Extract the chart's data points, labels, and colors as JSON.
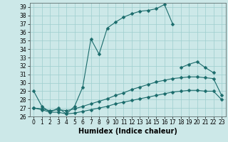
{
  "xlabel": "Humidex (Indice chaleur)",
  "bg_color": "#cce8e8",
  "grid_color": "#9ecece",
  "line_color": "#1a6b6b",
  "xlim": [
    -0.5,
    23.5
  ],
  "ylim": [
    26,
    39.5
  ],
  "xticks": [
    0,
    1,
    2,
    3,
    4,
    5,
    6,
    7,
    8,
    9,
    10,
    11,
    12,
    13,
    14,
    15,
    16,
    17,
    18,
    19,
    20,
    21,
    22,
    23
  ],
  "yticks": [
    26,
    27,
    28,
    29,
    30,
    31,
    32,
    33,
    34,
    35,
    36,
    37,
    38,
    39
  ],
  "series": [
    {
      "x": [
        0,
        1,
        2,
        3,
        4,
        5,
        6,
        7,
        8,
        9,
        10,
        11,
        12,
        13,
        14,
        15,
        16,
        17
      ],
      "y": [
        29.0,
        27.2,
        26.5,
        27.0,
        26.3,
        27.2,
        29.5,
        35.2,
        33.4,
        36.5,
        37.2,
        37.8,
        38.2,
        38.5,
        38.6,
        38.8,
        39.3,
        37.0
      ]
    },
    {
      "x": [
        18,
        19,
        20,
        21,
        22
      ],
      "y": [
        31.8,
        32.2,
        32.5,
        31.8,
        31.2
      ]
    },
    {
      "x": [
        0,
        1,
        2,
        3,
        4,
        5,
        6,
        7,
        8,
        9,
        10,
        11,
        12,
        13,
        14,
        15,
        16,
        17,
        18,
        19,
        20,
        21,
        22,
        23
      ],
      "y": [
        27.0,
        26.9,
        26.7,
        26.8,
        26.7,
        26.9,
        27.2,
        27.5,
        27.8,
        28.1,
        28.5,
        28.8,
        29.2,
        29.5,
        29.8,
        30.1,
        30.3,
        30.5,
        30.6,
        30.7,
        30.7,
        30.6,
        30.5,
        28.5
      ]
    },
    {
      "x": [
        0,
        1,
        2,
        3,
        4,
        5,
        6,
        7,
        8,
        9,
        10,
        11,
        12,
        13,
        14,
        15,
        16,
        17,
        18,
        19,
        20,
        21,
        22,
        23
      ],
      "y": [
        27.0,
        26.8,
        26.5,
        26.5,
        26.3,
        26.4,
        26.6,
        26.8,
        27.0,
        27.2,
        27.5,
        27.7,
        27.9,
        28.1,
        28.3,
        28.5,
        28.7,
        28.9,
        29.0,
        29.1,
        29.1,
        29.0,
        29.0,
        28.0
      ]
    }
  ],
  "tick_fontsize": 5.5,
  "xlabel_fontsize": 7,
  "markersize": 2.5
}
